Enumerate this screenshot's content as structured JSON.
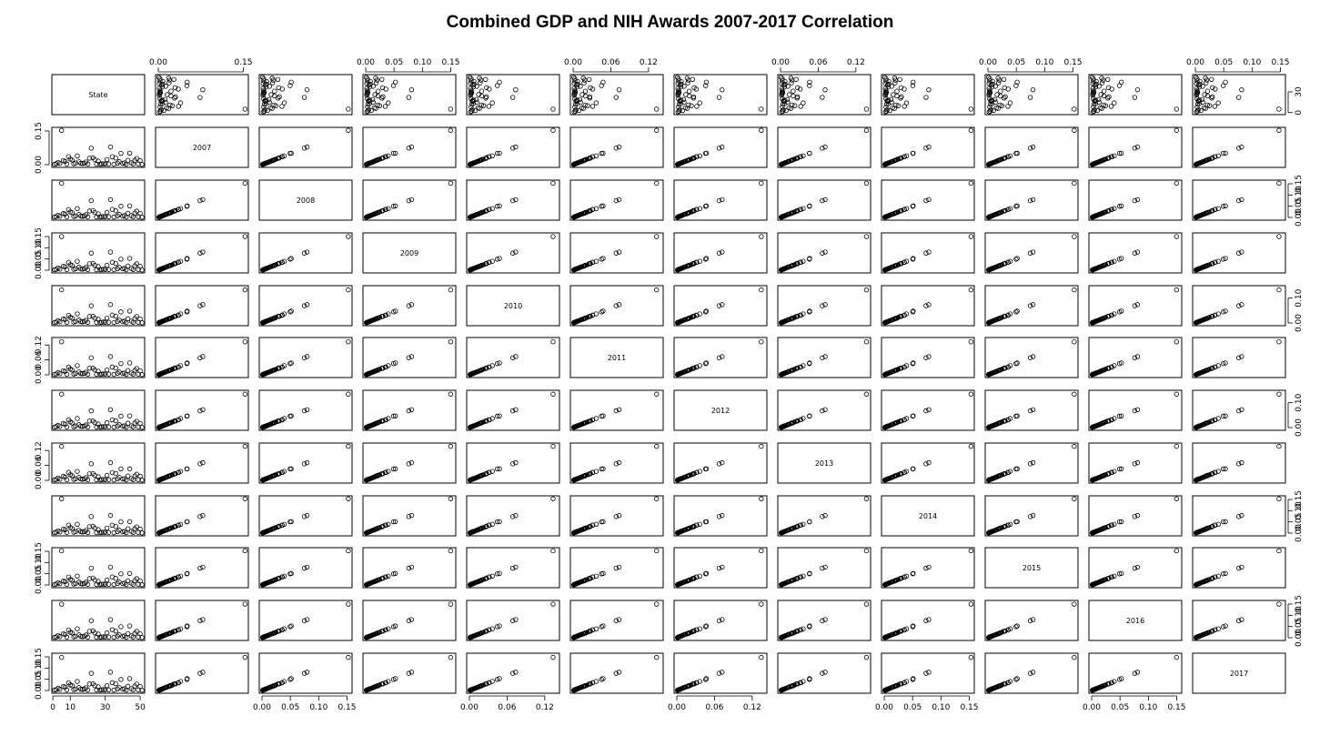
{
  "title": "Combined GDP and NIH Awards 2007-2017 Correlation",
  "chart_data": {
    "type": "scatter",
    "layout": "pairs-matrix",
    "variables": [
      "State",
      "2007",
      "2008",
      "2009",
      "2010",
      "2011",
      "2012",
      "2013",
      "2014",
      "2015",
      "2016",
      "2017"
    ],
    "marker": "open-circle",
    "axis_ticks": {
      "State": [
        0,
        10,
        30,
        50
      ],
      "State_right": [
        0,
        30
      ],
      "2007": [
        0.0,
        0.15
      ],
      "2008": [
        0.0,
        0.05,
        0.1,
        0.15
      ],
      "2009": [
        0.0,
        0.05,
        0.1,
        0.15
      ],
      "2010": [
        0.0,
        0.06,
        0.12
      ],
      "2011": [
        0.0,
        0.06,
        0.12
      ],
      "2012": [
        0.0,
        0.06,
        0.12
      ],
      "2013": [
        0.0,
        0.06,
        0.12
      ],
      "2014": [
        0.0,
        0.05,
        0.1,
        0.15
      ],
      "2015": [
        0.0,
        0.05,
        0.1,
        0.15
      ],
      "2016": [
        0.0,
        0.05,
        0.1,
        0.15
      ],
      "2017": [
        0.0,
        0.05,
        0.1,
        0.15
      ],
      "2010_left": [
        0.0,
        0.1
      ],
      "2012_left": [
        0.0,
        0.1
      ]
    },
    "tick_labels": {
      "State": [
        "0",
        "10",
        "30",
        "50"
      ],
      "State_right": [
        "0",
        "30"
      ],
      "2007": [
        "0.00",
        "0.15"
      ],
      "2008": [
        "0.00",
        "0.05",
        "0.10",
        "0.15"
      ],
      "2009": [
        "0.00",
        "0.05",
        "0.10",
        "0.15"
      ],
      "2010": [
        "0.00",
        "0.06",
        "0.12"
      ],
      "2011": [
        "0.00",
        "0.06",
        "0.12"
      ],
      "2012": [
        "0.00",
        "0.06",
        "0.12"
      ],
      "2013": [
        "0.00",
        "0.06",
        "0.12"
      ],
      "2014": [
        "0.00",
        "0.05",
        "0.10",
        "0.15"
      ],
      "2015": [
        "0.00",
        "0.05",
        "0.10",
        "0.15"
      ],
      "2016": [
        "0.00",
        "0.05",
        "0.10",
        "0.15"
      ],
      "2017": [
        "0.00",
        "0.05",
        "0.10",
        "0.15"
      ],
      "2010_left": [
        "0.00",
        "0.10"
      ],
      "2012_left": [
        "0.00",
        "0.10"
      ]
    },
    "ranges": {
      "State": [
        1,
        51
      ],
      "2007": [
        0,
        0.154
      ],
      "2008": [
        0,
        0.154
      ],
      "2009": [
        0,
        0.154
      ],
      "2010": [
        0,
        0.139
      ],
      "2011": [
        0,
        0.139
      ],
      "2012": [
        0,
        0.139
      ],
      "2013": [
        0,
        0.139
      ],
      "2014": [
        0,
        0.154
      ],
      "2015": [
        0,
        0.154
      ],
      "2016": [
        0,
        0.154
      ],
      "2017": [
        0,
        0.154
      ]
    },
    "state": [
      1,
      2,
      3,
      4,
      5,
      6,
      7,
      8,
      9,
      10,
      11,
      12,
      13,
      14,
      15,
      16,
      17,
      18,
      19,
      20,
      21,
      22,
      23,
      24,
      25,
      26,
      27,
      28,
      29,
      30,
      31,
      32,
      33,
      34,
      35,
      36,
      37,
      38,
      39,
      40,
      41,
      42,
      43,
      44,
      45,
      46,
      47,
      48,
      49,
      50,
      51
    ],
    "share_2007": [
      0.002,
      0.004,
      0.01,
      0.005,
      0.15,
      0.018,
      0.015,
      0.003,
      0.035,
      0.025,
      0.021,
      0.004,
      0.007,
      0.04,
      0.013,
      0.006,
      0.005,
      0.007,
      0.012,
      0.003,
      0.029,
      0.075,
      0.03,
      0.022,
      0.002,
      0.016,
      0.002,
      0.003,
      0.004,
      0.003,
      0.022,
      0.003,
      0.08,
      0.035,
      0.002,
      0.03,
      0.007,
      0.013,
      0.05,
      0.006,
      0.008,
      0.002,
      0.019,
      0.052,
      0.008,
      0.003,
      0.02,
      0.028,
      0.003,
      0.018,
      0.001
    ]
  }
}
